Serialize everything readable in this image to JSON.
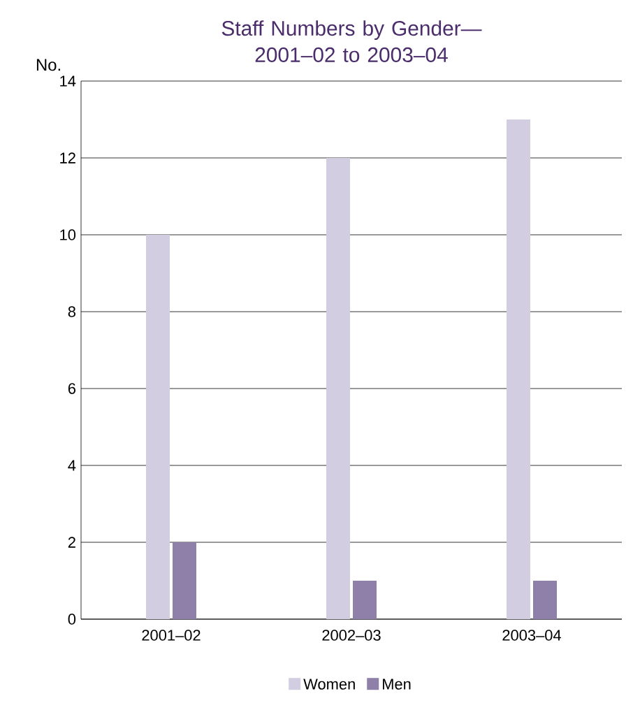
{
  "chart_data": {
    "type": "bar",
    "title": "Staff Numbers by Gender—2001–02 to 2003–04",
    "ylabel": "No.",
    "categories": [
      "2001–02",
      "2002–03",
      "2003–04"
    ],
    "series": [
      {
        "name": "Women",
        "color": "#d3cde1",
        "values": [
          10,
          12,
          13
        ]
      },
      {
        "name": "Men",
        "color": "#8f80a9",
        "values": [
          2,
          1,
          1
        ]
      }
    ],
    "ylim": [
      0,
      14
    ],
    "yticks": [
      0,
      2,
      4,
      6,
      8,
      10,
      12,
      14
    ],
    "grid": "y",
    "legend": "bottom"
  }
}
